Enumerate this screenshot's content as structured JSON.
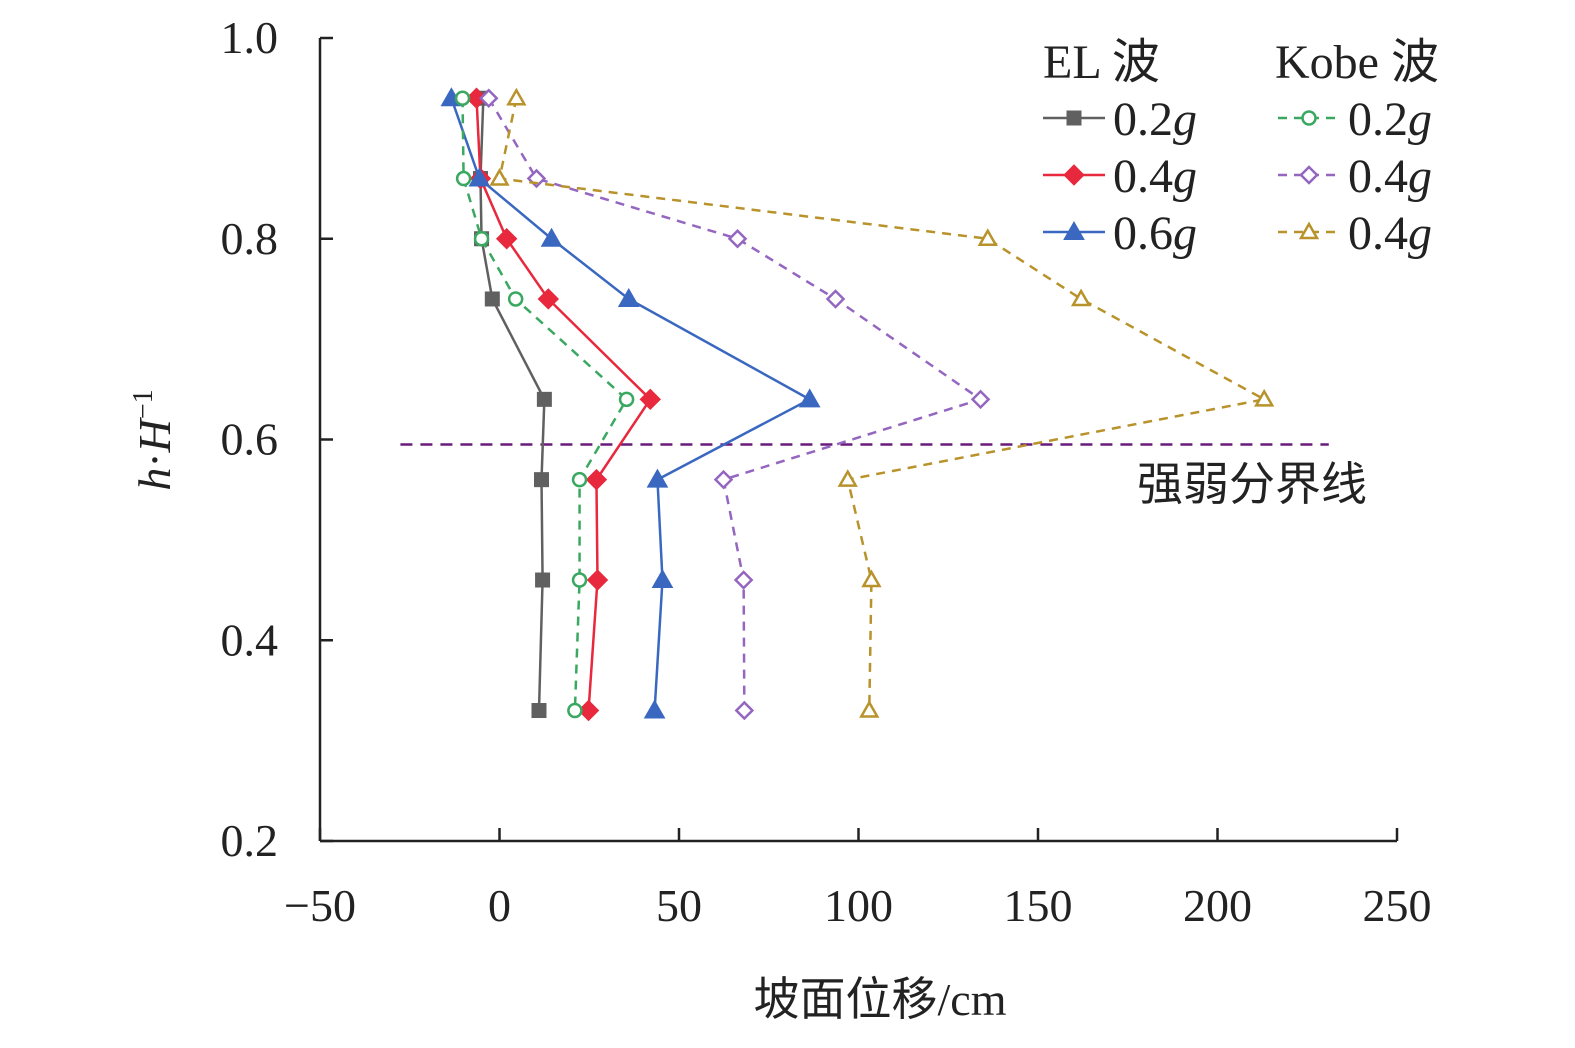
{
  "chart_data": {
    "type": "line",
    "title": "",
    "xlabel": "坡面位移/cm",
    "ylabel_parts": {
      "h": "h",
      "dot": "·",
      "H": "H",
      "sup": "−1"
    },
    "xlim": [
      -50,
      250
    ],
    "ylim": [
      0.2,
      1.0
    ],
    "xticks": [
      -50,
      0,
      50,
      100,
      150,
      200,
      250
    ],
    "xtick_labels": [
      "−50",
      "0",
      "50",
      "100",
      "150",
      "200",
      "250"
    ],
    "yticks": [
      0.2,
      0.4,
      0.6,
      0.8,
      1.0
    ],
    "ytick_labels": [
      "0.2",
      "0.4",
      "0.6",
      "0.8",
      "1.0"
    ],
    "grid": false,
    "legend_placement": "top-right",
    "legend_groups": [
      "EL 波",
      "Kobe 波"
    ],
    "y": [
      0.94,
      0.86,
      0.8,
      0.74,
      0.64,
      0.56,
      0.46,
      0.33
    ],
    "series": [
      {
        "name": "0.2g",
        "group": "EL 波",
        "color": "#606060",
        "dash": false,
        "marker": "square",
        "filled": true,
        "values": [
          -4.5,
          -5.3,
          -5,
          -2,
          12.5,
          11.7,
          12,
          11
        ]
      },
      {
        "name": "0.4g",
        "group": "EL 波",
        "color": "#e8283c",
        "dash": false,
        "marker": "diamond",
        "filled": true,
        "values": [
          -6.4,
          -5.3,
          2,
          13.6,
          42,
          27,
          27.3,
          24.8
        ]
      },
      {
        "name": "0.6g",
        "group": "EL 波",
        "color": "#3a68c0",
        "dash": false,
        "marker": "triangle",
        "filled": true,
        "values": [
          -13.4,
          -5.6,
          14.5,
          36,
          86.4,
          44,
          45.4,
          43.2
        ]
      },
      {
        "name": "0.2g",
        "group": "Kobe 波",
        "color": "#3aa860",
        "dash": true,
        "marker": "circle",
        "filled": false,
        "values": [
          -10.3,
          -10,
          -5,
          4.5,
          35.4,
          22.3,
          22.3,
          21
        ]
      },
      {
        "name": "0.4g",
        "group": "Kobe 波",
        "color": "#9466c0",
        "dash": true,
        "marker": "diamond",
        "filled": false,
        "values": [
          -3,
          10.3,
          66.3,
          93.6,
          134,
          62.4,
          68,
          68.2
        ]
      },
      {
        "name": "0.4g",
        "group": "Kobe 波",
        "color": "#b8922a",
        "dash": true,
        "marker": "triangle",
        "filled": false,
        "values": [
          4.7,
          0,
          136,
          162,
          213,
          97,
          103.6,
          103
        ]
      }
    ],
    "annotations": [
      {
        "text": "强弱分界线",
        "type": "hline",
        "y": 0.595,
        "x_range": [
          -27.6,
          231
        ],
        "color": "#6a1a7a"
      }
    ]
  }
}
